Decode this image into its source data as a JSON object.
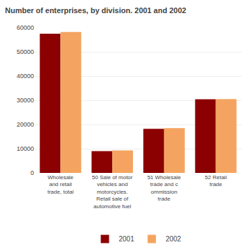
{
  "chart_data": {
    "type": "bar",
    "title": "Number of enterprises, by division. 2001 and 2002",
    "categories": [
      "Wholesale\nand retail\ntrade, total",
      "50 Sale of motor\nvehicles and\nmotorcycles.\nRetail sale of\nautomotive fuel",
      "51 Wholesale\ntrade and c\nommission\ntrade",
      "52 Retail\ntrade"
    ],
    "series": [
      {
        "name": "2001",
        "color": "#8B0000",
        "values": [
          57500,
          9000,
          18200,
          30400
        ]
      },
      {
        "name": "2002",
        "color": "#F4A460",
        "values": [
          58200,
          9300,
          18500,
          30500
        ]
      }
    ],
    "ylim": [
      0,
      60000
    ],
    "yticks": [
      0,
      10000,
      20000,
      30000,
      40000,
      50000,
      60000
    ],
    "grid": true,
    "legend": "bottom"
  }
}
